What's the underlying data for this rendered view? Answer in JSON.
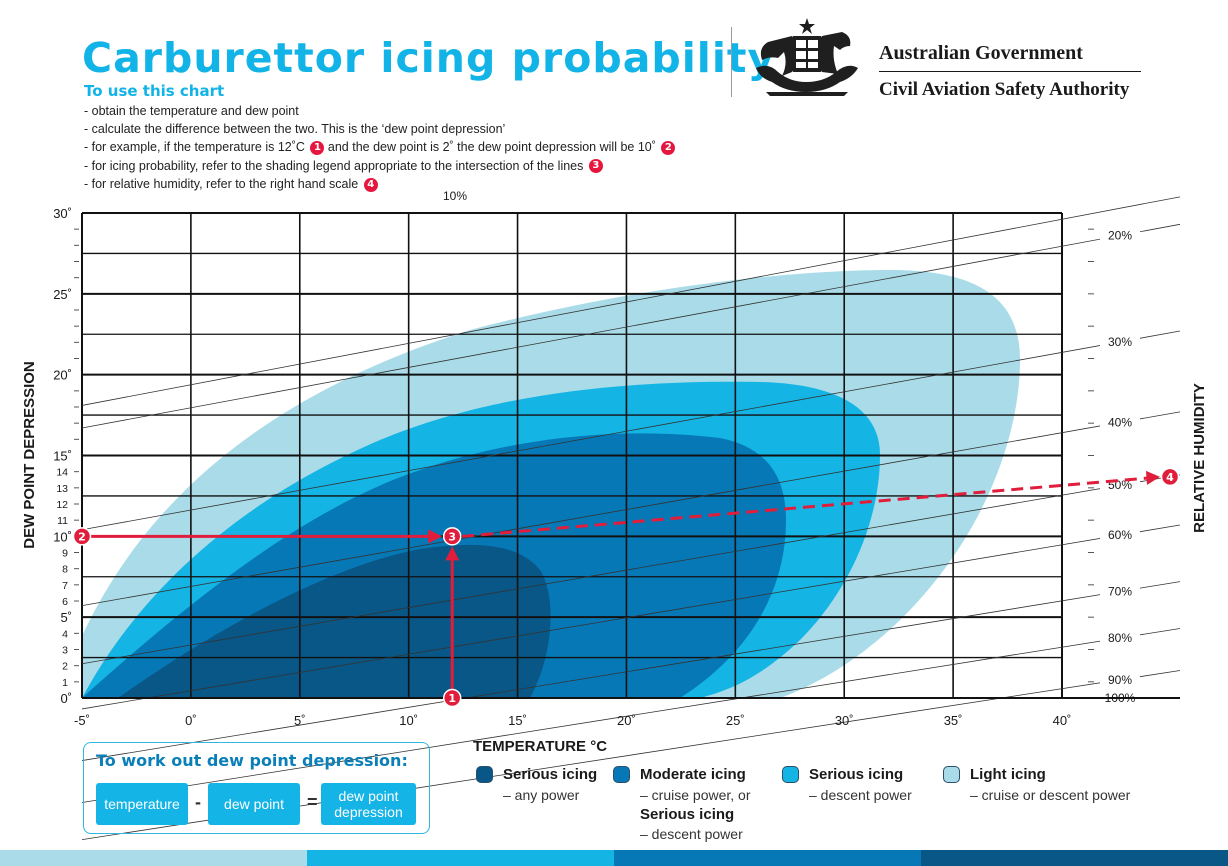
{
  "title": "Carburettor icing probability",
  "header": {
    "how_title": "To use this chart",
    "steps": [
      "- obtain the temperature and dew point",
      "- calculate the difference between the two. This is the ‘dew point depression’",
      "- for example, if the temperature is 12˚C",
      "and the dew point is 2˚ the dew point depression will be 10˚",
      "- for icing probability, refer to the shading legend appropriate to the intersection of the lines",
      "- for relative humidity, refer to the right hand scale"
    ],
    "markers": [
      "1",
      "2",
      "3",
      "4"
    ]
  },
  "government": {
    "line1": "Australian Government",
    "line2": "Civil Aviation Safety Authority",
    "crest_icon": "coat-of-arms-icon"
  },
  "chart_data": {
    "type": "area",
    "xlabel": "TEMPERATURE °C",
    "ylabel": "DEW POINT DEPRESSION",
    "y2label": "RELATIVE HUMIDITY",
    "xlim": [
      -5,
      40
    ],
    "ylim": [
      0,
      30
    ],
    "x_ticks": [
      "-5˚",
      "0˚",
      "5˚",
      "10˚",
      "15˚",
      "20˚",
      "25˚",
      "30˚",
      "35˚",
      "40˚"
    ],
    "y_major_ticks": [
      "0˚",
      "5˚",
      "10˚",
      "15˚",
      "20˚",
      "25˚",
      "30˚"
    ],
    "y_minor_ticks": [
      "1",
      "2",
      "3",
      "4",
      "6",
      "7",
      "8",
      "9",
      "11",
      "12",
      "13",
      "14"
    ],
    "rh_labels": [
      "10%",
      "20%",
      "30%",
      "40%",
      "50%",
      "60%",
      "70%",
      "80%",
      "90%",
      "100%"
    ],
    "rh_right_depression": [
      31,
      29.3,
      22.7,
      17.7,
      13.8,
      10.7,
      7.2,
      4.3,
      1.7,
      0
    ],
    "zones": [
      {
        "name": "Light icing",
        "color": "#a9dce8"
      },
      {
        "name": "Serious icing",
        "color": "#14b5e4"
      },
      {
        "name": "Moderate icing",
        "color": "#0778b6"
      },
      {
        "name": "Serious icing",
        "color": "#095786"
      }
    ],
    "example": {
      "temperature": 12,
      "dew_point_depression": 10,
      "relative_humidity": "50%"
    },
    "colors": {
      "grid": "#111111",
      "example_line": "#e11d3c"
    }
  },
  "dew_box": {
    "title": "To work out dew point depression:",
    "temperature": "temperature",
    "minus": "-",
    "dew_point": "dew point",
    "equals": "=",
    "result_line1": "dew point",
    "result_line2": "depression"
  },
  "legend": [
    {
      "label": "Serious icing",
      "sub": "– any power",
      "color": "#095786"
    },
    {
      "label": "Moderate icing",
      "sub": "– cruise power, or",
      "label2": "Serious icing",
      "sub2": "– descent power",
      "color": "#0778b6"
    },
    {
      "label": "Serious icing",
      "sub": "– descent power",
      "color": "#14b5e4"
    },
    {
      "label": "Light icing",
      "sub": "– cruise or descent power",
      "color": "#a9dce8"
    }
  ],
  "stripe_colors": [
    "#a9dce8",
    "#14b5e4",
    "#0778b6",
    "#095786"
  ]
}
